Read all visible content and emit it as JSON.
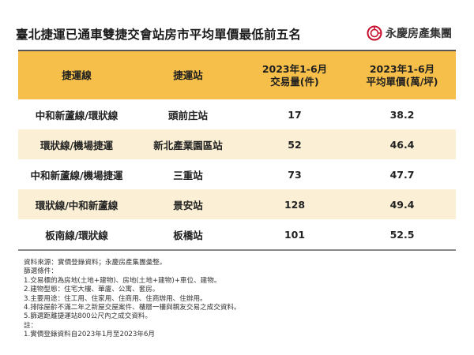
{
  "title": "臺北捷運已通車雙捷交會站房市平均單價最低前五名",
  "brand": {
    "name": "永慶房產集團",
    "logo_icon": "yung-ching-logo-icon",
    "logo_color": "#c8102e"
  },
  "table": {
    "headers": [
      {
        "line1": "捷運線",
        "line2": ""
      },
      {
        "line1": "捷運站",
        "line2": ""
      },
      {
        "line1": "2023年1-6月",
        "line2": "交易量(件)"
      },
      {
        "line1": "2023年1-6月",
        "line2": "平均單價(萬/坪)"
      }
    ],
    "rows": [
      {
        "line": "中和新蘆線/環狀線",
        "station": "頭前庄站",
        "volume": "17",
        "price": "38.2"
      },
      {
        "line": "環狀線/機場捷運",
        "station": "新北產業園區站",
        "volume": "52",
        "price": "46.4"
      },
      {
        "line": "中和新蘆線/機場捷運",
        "station": "三重站",
        "volume": "73",
        "price": "47.7"
      },
      {
        "line": "環狀線/中和新蘆線",
        "station": "景安站",
        "volume": "128",
        "price": "49.4"
      },
      {
        "line": "板南線/環狀線",
        "station": "板橋站",
        "volume": "101",
        "price": "52.5"
      }
    ],
    "header_color": "#f5bf4a",
    "stripe_color": "#fbf0d6"
  },
  "notes": [
    "資料來源：實價登錄資料；永慶房產集團彙整。",
    "篩選條件：",
    "1.交易標的為房地(土地+建物)、房地(土地+建物)+車位、建物。",
    "2.建物型態：住宅大樓、華廈、公寓、套房。",
    "3.主要用途：住工用、住家用、住商用、住商辦用、住辦用。",
    "4.排除屋齡不滿二年之新屋交屋案件、樓層一樓與親友交易之成交資料。",
    "5.篩選距離捷運站800公尺內之成交資料。",
    "註：",
    "1.實價登錄資料自2023年1月至2023年6月"
  ]
}
